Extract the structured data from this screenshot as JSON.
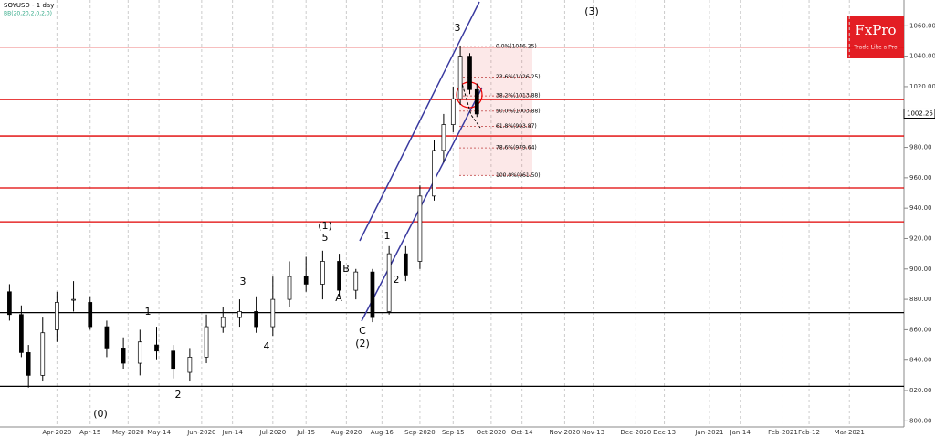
{
  "chart_data": {
    "type": "candlestick",
    "title": "SOYUSD - 1 day",
    "subtitle": "BB(20,20,2,0,2,0)",
    "brand": {
      "name": "FxPro",
      "tagline": "Trade Like a Pro"
    },
    "x": [
      "2020-03-12",
      "2020-03-17",
      "2020-03-20",
      "2020-03-26",
      "2020-04-01",
      "2020-04-08",
      "2020-04-15",
      "2020-04-22",
      "2020-04-29",
      "2020-05-06",
      "2020-05-13",
      "2020-05-20",
      "2020-05-27",
      "2020-06-03",
      "2020-06-10",
      "2020-06-17",
      "2020-06-24",
      "2020-07-01",
      "2020-07-08",
      "2020-07-15",
      "2020-07-22",
      "2020-07-29",
      "2020-08-05",
      "2020-08-12",
      "2020-08-19",
      "2020-08-26",
      "2020-09-01",
      "2020-09-07",
      "2020-09-11",
      "2020-09-15",
      "2020-09-18",
      "2020-09-22",
      "2020-09-25"
    ],
    "open": [
      885,
      870,
      845,
      830,
      860,
      880,
      878,
      862,
      848,
      838,
      850,
      846,
      832,
      842,
      862,
      868,
      872,
      862,
      880,
      895,
      890,
      905,
      886,
      898,
      872,
      910,
      905,
      948,
      978,
      995,
      1012,
      1040,
      1018
    ],
    "high": [
      890,
      876,
      850,
      868,
      885,
      892,
      882,
      866,
      855,
      860,
      862,
      850,
      848,
      870,
      875,
      880,
      882,
      895,
      905,
      908,
      912,
      910,
      900,
      900,
      915,
      915,
      955,
      985,
      1002,
      1020,
      1047,
      1042,
      1022
    ],
    "low": [
      866,
      842,
      822,
      826,
      852,
      872,
      860,
      842,
      834,
      830,
      840,
      828,
      826,
      838,
      858,
      862,
      858,
      856,
      875,
      885,
      880,
      882,
      880,
      865,
      870,
      892,
      900,
      945,
      970,
      990,
      1008,
      1015,
      1000
    ],
    "close": [
      870,
      845,
      830,
      858,
      878,
      880,
      862,
      848,
      838,
      852,
      846,
      834,
      842,
      862,
      868,
      872,
      862,
      880,
      895,
      890,
      905,
      886,
      898,
      868,
      910,
      896,
      948,
      978,
      995,
      1012,
      1040,
      1018,
      1002
    ],
    "xlim": [
      "2020-03-08",
      "2021-03-24"
    ],
    "xticks": [
      {
        "value": "2020-04-01",
        "label": "Apr-2020"
      },
      {
        "value": "2020-04-15",
        "label": "Apr-15"
      },
      {
        "value": "2020-05-01",
        "label": "May-2020"
      },
      {
        "value": "2020-05-14",
        "label": "May-14"
      },
      {
        "value": "2020-06-01",
        "label": "Jun-2020"
      },
      {
        "value": "2020-06-14",
        "label": "Jun-14"
      },
      {
        "value": "2020-07-01",
        "label": "Jul-2020"
      },
      {
        "value": "2020-07-15",
        "label": "Jul-15"
      },
      {
        "value": "2020-08-01",
        "label": "Aug-2020"
      },
      {
        "value": "2020-08-16",
        "label": "Aug-16"
      },
      {
        "value": "2020-09-01",
        "label": "Sep-2020"
      },
      {
        "value": "2020-09-15",
        "label": "Sep-15"
      },
      {
        "value": "2020-10-01",
        "label": "Oct-2020"
      },
      {
        "value": "2020-10-14",
        "label": "Oct-14"
      },
      {
        "value": "2020-11-01",
        "label": "Nov-2020"
      },
      {
        "value": "2020-11-13",
        "label": "Nov-13"
      },
      {
        "value": "2020-12-01",
        "label": "Dec-2020"
      },
      {
        "value": "2020-12-13",
        "label": "Dec-13"
      },
      {
        "value": "2021-01-01",
        "label": "Jan-2021"
      },
      {
        "value": "2021-01-14",
        "label": "Jan-14"
      },
      {
        "value": "2021-02-01",
        "label": "Feb-2021"
      },
      {
        "value": "2021-02-12",
        "label": "Feb-12"
      },
      {
        "value": "2021-03-01",
        "label": "Mar-2021"
      }
    ],
    "ylim": [
      796,
      1077
    ],
    "yticks": [
      {
        "value": 800,
        "label": "800.00"
      },
      {
        "value": 820,
        "label": "820.00"
      },
      {
        "value": 840,
        "label": "840.00"
      },
      {
        "value": 860,
        "label": "860.00"
      },
      {
        "value": 880,
        "label": "880.00"
      },
      {
        "value": 900,
        "label": "900.00"
      },
      {
        "value": 920,
        "label": "920.00"
      },
      {
        "value": 940,
        "label": "940.00"
      },
      {
        "value": 960,
        "label": "960.00"
      },
      {
        "value": 980,
        "label": "980.00"
      },
      {
        "value": 1000,
        "label": "1000.00"
      },
      {
        "value": 1020,
        "label": "1020.00"
      },
      {
        "value": 1040,
        "label": "1040.00"
      },
      {
        "value": 1060,
        "label": "1060.00"
      }
    ],
    "last_price": 1002.25,
    "levels": [
      {
        "value": 1046,
        "color": "#e00000"
      },
      {
        "value": 1011.5,
        "color": "#e00000"
      },
      {
        "value": 987.5,
        "color": "#e00000"
      },
      {
        "value": 953.3,
        "color": "#e00000"
      },
      {
        "value": 931,
        "color": "#e00000"
      },
      {
        "value": 871.3,
        "color": "#000000"
      },
      {
        "value": 822.8,
        "color": "#000000"
      }
    ],
    "fib": [
      {
        "value": 1046.25,
        "label": "0.0%(1046.25)"
      },
      {
        "value": 1026.25,
        "label": "23.6%(1026.25)"
      },
      {
        "value": 1013.88,
        "label": "38.2%(1013.88)"
      },
      {
        "value": 1003.88,
        "label": "50.0%(1003.88)"
      },
      {
        "value": 993.87,
        "label": "61.8%(993.87)"
      },
      {
        "value": 979.64,
        "label": "78.6%(979.64)"
      },
      {
        "value": 961.5,
        "label": "100.0%(961.50)"
      }
    ],
    "annotations": [
      "(3)",
      "3",
      "(1)",
      "5",
      "1",
      "2",
      "A",
      "B",
      "C",
      "(2)",
      "3",
      "4",
      "1",
      "2",
      "(0)"
    ]
  }
}
